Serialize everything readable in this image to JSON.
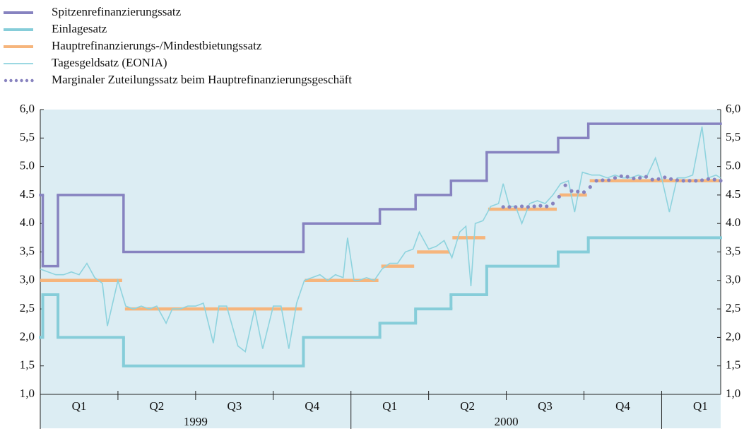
{
  "chart_data": {
    "type": "line",
    "xlim": [
      1999,
      2001.19
    ],
    "ylim": [
      1,
      6
    ],
    "yticks": [
      {
        "value": 6,
        "label": "6,0"
      },
      {
        "value": 5.5,
        "label": "5,5"
      },
      {
        "value": 5,
        "label": "5.0"
      },
      {
        "value": 4.5,
        "label": "4.5"
      },
      {
        "value": 4,
        "label": "4.0"
      },
      {
        "value": 3.5,
        "label": "3,5"
      },
      {
        "value": 3,
        "label": "3,0"
      },
      {
        "value": 2.5,
        "label": "2,5"
      },
      {
        "value": 2,
        "label": "2,0"
      },
      {
        "value": 1.5,
        "label": "1,5"
      },
      {
        "value": 1,
        "label": "1,0"
      }
    ],
    "xticks": [
      1999,
      1999.25,
      1999.5,
      1999.75,
      2000,
      2000.25,
      2000.5,
      2000.75,
      2001
    ],
    "quarter_labels": [
      "Q1",
      "Q2",
      "Q3",
      "Q4",
      "Q1",
      "Q2",
      "Q3",
      "Q4",
      "Q1"
    ],
    "years": [
      "1999",
      "2000"
    ],
    "series": [
      {
        "name": "Spitzenrefinanzierungssatz",
        "color": "#8783c0",
        "style": "step",
        "x": [
          1999,
          1999.008,
          1999.057,
          1999.268,
          1999.847,
          2000.093,
          2000.208,
          2000.322,
          2000.437,
          2000.667,
          2000.764
        ],
        "values": [
          4.5,
          3.25,
          4.5,
          3.5,
          4.0,
          4.25,
          4.5,
          4.75,
          5.25,
          5.5,
          5.75
        ]
      },
      {
        "name": "Einlagesatz",
        "color": "#86cdd9",
        "style": "step",
        "x": [
          1999,
          1999.008,
          1999.057,
          1999.268,
          1999.847,
          2000.093,
          2000.208,
          2000.322,
          2000.437,
          2000.667,
          2000.764
        ],
        "values": [
          2.0,
          2.75,
          2.0,
          1.5,
          2.0,
          2.25,
          2.5,
          2.75,
          3.25,
          3.5,
          3.75
        ]
      },
      {
        "name": "Hauptrefinanzierungs-/Mindestbietungssatz",
        "color": "#f6b57c",
        "style": "segments",
        "x": [
          1999,
          1999.268,
          1999.847,
          2000.093,
          2000.208,
          2000.322,
          2000.437,
          2000.667,
          2000.764
        ],
        "values": [
          3.0,
          2.5,
          3.0,
          3.25,
          3.5,
          3.75,
          4.25,
          4.5,
          4.75
        ]
      },
      {
        "name": "Tagesgeldsatz (EONIA)",
        "color": "#8ed3de",
        "style": "line",
        "x": [
          1999.0,
          1999.025,
          1999.05,
          1999.075,
          1999.1,
          1999.125,
          1999.15,
          1999.175,
          1999.2,
          1999.216,
          1999.25,
          1999.275,
          1999.3,
          1999.325,
          1999.35,
          1999.375,
          1999.405,
          1999.425,
          1999.45,
          1999.475,
          1999.5,
          1999.525,
          1999.557,
          1999.575,
          1999.6,
          1999.636,
          1999.66,
          1999.69,
          1999.716,
          1999.75,
          1999.775,
          1999.8,
          1999.825,
          1999.85,
          1999.875,
          1999.9,
          1999.925,
          1999.95,
          1999.975,
          1999.989,
          2000.01,
          2000.025,
          2000.05,
          2000.075,
          2000.1,
          2000.125,
          2000.15,
          2000.175,
          2000.2,
          2000.22,
          2000.25,
          2000.275,
          2000.3,
          2000.325,
          2000.35,
          2000.37,
          2000.386,
          2000.4,
          2000.425,
          2000.45,
          2000.475,
          2000.49,
          2000.51,
          2000.53,
          2000.55,
          2000.575,
          2000.6,
          2000.625,
          2000.65,
          2000.675,
          2000.7,
          2000.72,
          2000.745,
          2000.775,
          2000.8,
          2000.825,
          2000.85,
          2000.875,
          2000.9,
          2000.925,
          2000.95,
          2000.98,
          2001.0,
          2001.025,
          2001.05,
          2001.075,
          2001.1,
          2001.13,
          2001.15,
          2001.175,
          2001.19
        ],
        "values": [
          3.2,
          3.15,
          3.1,
          3.1,
          3.15,
          3.1,
          3.3,
          3.05,
          2.95,
          2.2,
          3.0,
          2.55,
          2.5,
          2.55,
          2.5,
          2.55,
          2.25,
          2.5,
          2.5,
          2.55,
          2.55,
          2.6,
          1.9,
          2.55,
          2.55,
          1.85,
          1.75,
          2.5,
          1.8,
          2.55,
          2.55,
          1.8,
          2.6,
          3.0,
          3.05,
          3.1,
          3.0,
          3.1,
          3.05,
          3.75,
          3.0,
          3.0,
          3.05,
          3.0,
          3.2,
          3.3,
          3.3,
          3.5,
          3.55,
          3.85,
          3.55,
          3.6,
          3.7,
          3.4,
          3.85,
          3.95,
          2.9,
          4.0,
          4.05,
          4.3,
          4.35,
          4.7,
          4.3,
          4.3,
          4.0,
          4.35,
          4.4,
          4.35,
          4.5,
          4.7,
          4.75,
          4.2,
          4.9,
          4.85,
          4.85,
          4.8,
          4.85,
          4.8,
          4.8,
          4.85,
          4.8,
          5.15,
          4.8,
          4.2,
          4.8,
          4.8,
          4.85,
          5.7,
          4.8,
          4.85,
          4.8
        ]
      },
      {
        "name": "Marginaler Zuteilungssatz beim Hauptrefinanzierungsgeschäft",
        "color": "#8883bf",
        "style": "dots",
        "x": [
          2000.49,
          2000.51,
          2000.53,
          2000.55,
          2000.57,
          2000.59,
          2000.61,
          2000.63,
          2000.65,
          2000.67,
          2000.69,
          2000.71,
          2000.73,
          2000.75,
          2000.77,
          2000.79,
          2000.81,
          2000.83,
          2000.85,
          2000.87,
          2000.89,
          2000.91,
          2000.93,
          2000.95,
          2000.97,
          2000.99,
          2001.01,
          2001.03,
          2001.05,
          2001.07,
          2001.09,
          2001.11,
          2001.13,
          2001.15,
          2001.17,
          2001.19
        ],
        "values": [
          4.29,
          4.29,
          4.29,
          4.3,
          4.29,
          4.3,
          4.31,
          4.3,
          4.35,
          4.47,
          4.67,
          4.57,
          4.56,
          4.55,
          4.64,
          4.75,
          4.76,
          4.76,
          4.8,
          4.83,
          4.82,
          4.79,
          4.8,
          4.82,
          4.77,
          4.78,
          4.81,
          4.78,
          4.76,
          4.75,
          4.75,
          4.75,
          4.76,
          4.78,
          4.77,
          4.75
        ]
      }
    ]
  }
}
